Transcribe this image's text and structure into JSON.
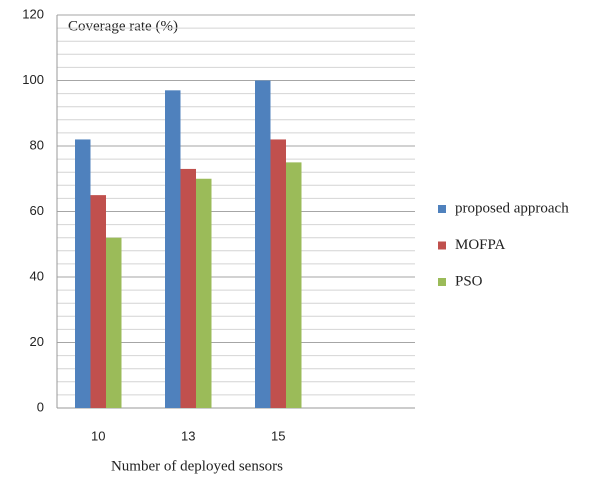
{
  "chart_data": {
    "type": "bar",
    "title": "Coverage rate (%)",
    "x_label": "Number of deployed sensors",
    "categories": [
      "10",
      "13",
      "15"
    ],
    "series": [
      {
        "name": "proposed approach",
        "color": "#4f81bd",
        "values": [
          82,
          97,
          100
        ]
      },
      {
        "name": "MOFPA",
        "color": "#c0504d",
        "values": [
          65,
          73,
          82
        ]
      },
      {
        "name": "PSO",
        "color": "#9bbb59",
        "values": [
          52,
          70,
          75
        ]
      }
    ],
    "ylim": [
      0,
      120
    ],
    "yticks": [
      0,
      20,
      40,
      60,
      80,
      100,
      120
    ],
    "minor_yticks": [
      4,
      8,
      12,
      16,
      24,
      28,
      32,
      36,
      44,
      48,
      52,
      56,
      64,
      68,
      72,
      76,
      84,
      88,
      92,
      96,
      104,
      108,
      112,
      116
    ],
    "grid": true,
    "legend": "right"
  }
}
